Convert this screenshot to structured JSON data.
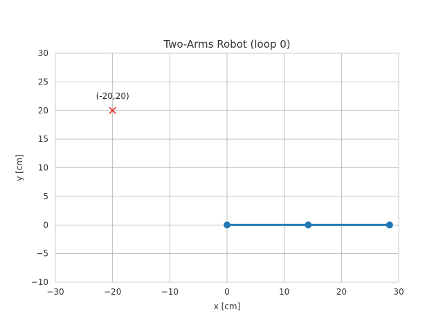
{
  "chart_data": {
    "type": "line",
    "title": "Two-Arms Robot (loop 0)",
    "xlabel": "x [cm]",
    "ylabel": "y [cm]",
    "xlim": [
      -30,
      30
    ],
    "ylim": [
      -10,
      30
    ],
    "xticks": [
      -30,
      -20,
      -10,
      0,
      10,
      20,
      30
    ],
    "yticks": [
      -10,
      -5,
      0,
      5,
      10,
      15,
      20,
      25,
      30
    ],
    "xtick_labels": [
      "−30",
      "−20",
      "−10",
      "0",
      "10",
      "20",
      "30"
    ],
    "ytick_labels": [
      "−10",
      "−5",
      "0",
      "5",
      "10",
      "15",
      "20",
      "25",
      "30"
    ],
    "grid": true,
    "series": [
      {
        "x": [
          0,
          14.2,
          28.4
        ],
        "y": [
          0,
          0,
          0
        ],
        "color": "#1f77b4",
        "marker": "circle"
      }
    ],
    "target": {
      "x": -20,
      "y": 20,
      "marker": "x",
      "color": "#ee1111",
      "label": "(-20,20)"
    }
  }
}
